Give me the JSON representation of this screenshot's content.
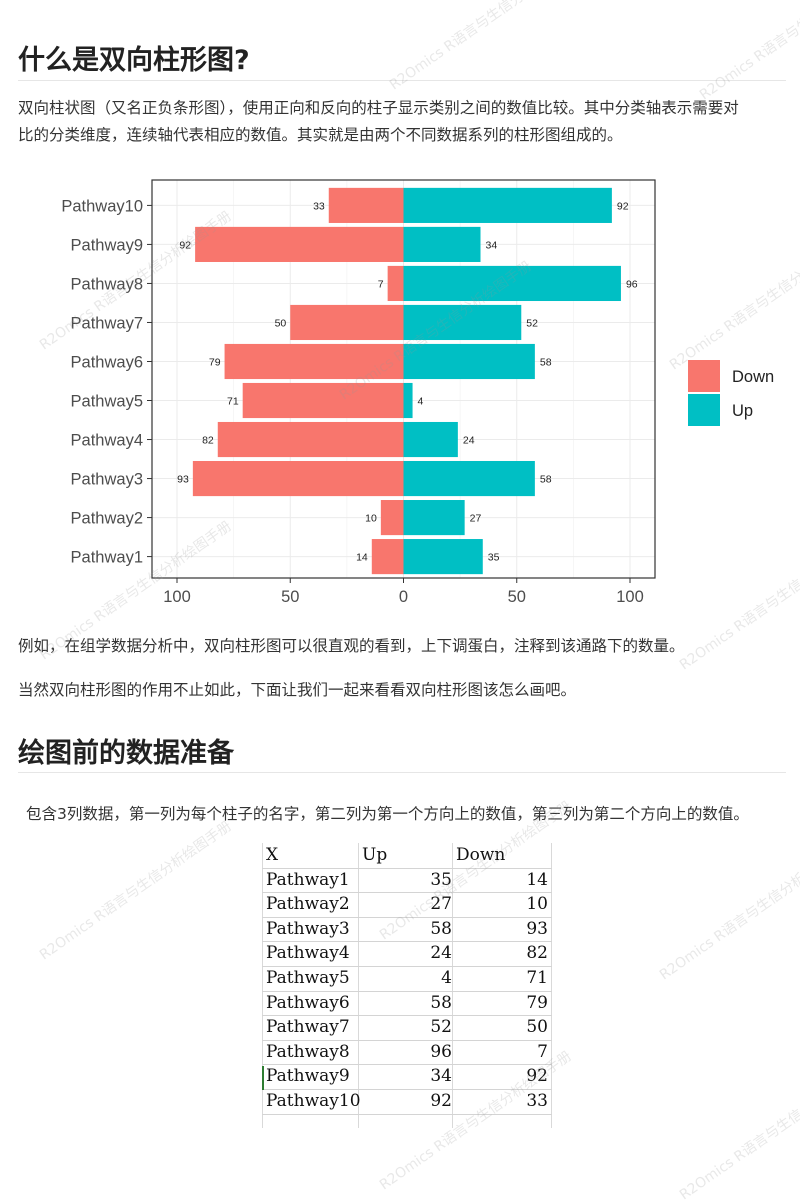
{
  "section1": {
    "title": "什么是双向柱形图?",
    "paragraph_line1": "双向柱状图（又名正负条形图），使用正向和反向的柱子显示类别之间的数值比较。其中分类轴表示需要对",
    "paragraph_line2": "比的分类维度，连续轴代表相应的数值。其实就是由两个不同数据系列的柱形图组成的。",
    "note1": "例如，在组学数据分析中，双向柱形图可以很直观的看到，上下调蛋白，注释到该通路下的数量。",
    "note2": "当然双向柱形图的作用不止如此，下面让我们一起来看看双向柱形图该怎么画吧。"
  },
  "section2": {
    "title": "绘图前的数据准备",
    "paragraph": "包含3列数据，第一列为每个柱子的名字，第二列为第一个方向上的数值，第三列为第二个方向上的数值。"
  },
  "watermark": "R2Omics R语言与生信分析绘图手册",
  "chart_data": {
    "type": "bar",
    "orientation": "horizontal",
    "diverging": true,
    "categories": [
      "Pathway1",
      "Pathway2",
      "Pathway3",
      "Pathway4",
      "Pathway5",
      "Pathway6",
      "Pathway7",
      "Pathway8",
      "Pathway9",
      "Pathway10"
    ],
    "series": [
      {
        "name": "Down",
        "color": "#F8766D",
        "values": [
          14,
          10,
          93,
          82,
          71,
          79,
          50,
          7,
          92,
          33
        ]
      },
      {
        "name": "Up",
        "color": "#00BFC4",
        "values": [
          35,
          27,
          58,
          24,
          4,
          58,
          52,
          96,
          34,
          92
        ]
      }
    ],
    "xlim": [
      -100,
      100
    ],
    "xticks": [
      -100,
      -50,
      0,
      50,
      100
    ],
    "xtick_labels": [
      "100",
      "50",
      "0",
      "50",
      "100"
    ],
    "grid": true,
    "legend_position": "right"
  },
  "table": {
    "headers": [
      "X",
      "Up",
      "Down"
    ],
    "rows": [
      [
        "Pathway1",
        "35",
        "14"
      ],
      [
        "Pathway2",
        "27",
        "10"
      ],
      [
        "Pathway3",
        "58",
        "93"
      ],
      [
        "Pathway4",
        "24",
        "82"
      ],
      [
        "Pathway5",
        "4",
        "71"
      ],
      [
        "Pathway6",
        "58",
        "79"
      ],
      [
        "Pathway7",
        "52",
        "50"
      ],
      [
        "Pathway8",
        "96",
        "7"
      ],
      [
        "Pathway9",
        "34",
        "92"
      ],
      [
        "Pathway10",
        "92",
        "33"
      ]
    ]
  }
}
